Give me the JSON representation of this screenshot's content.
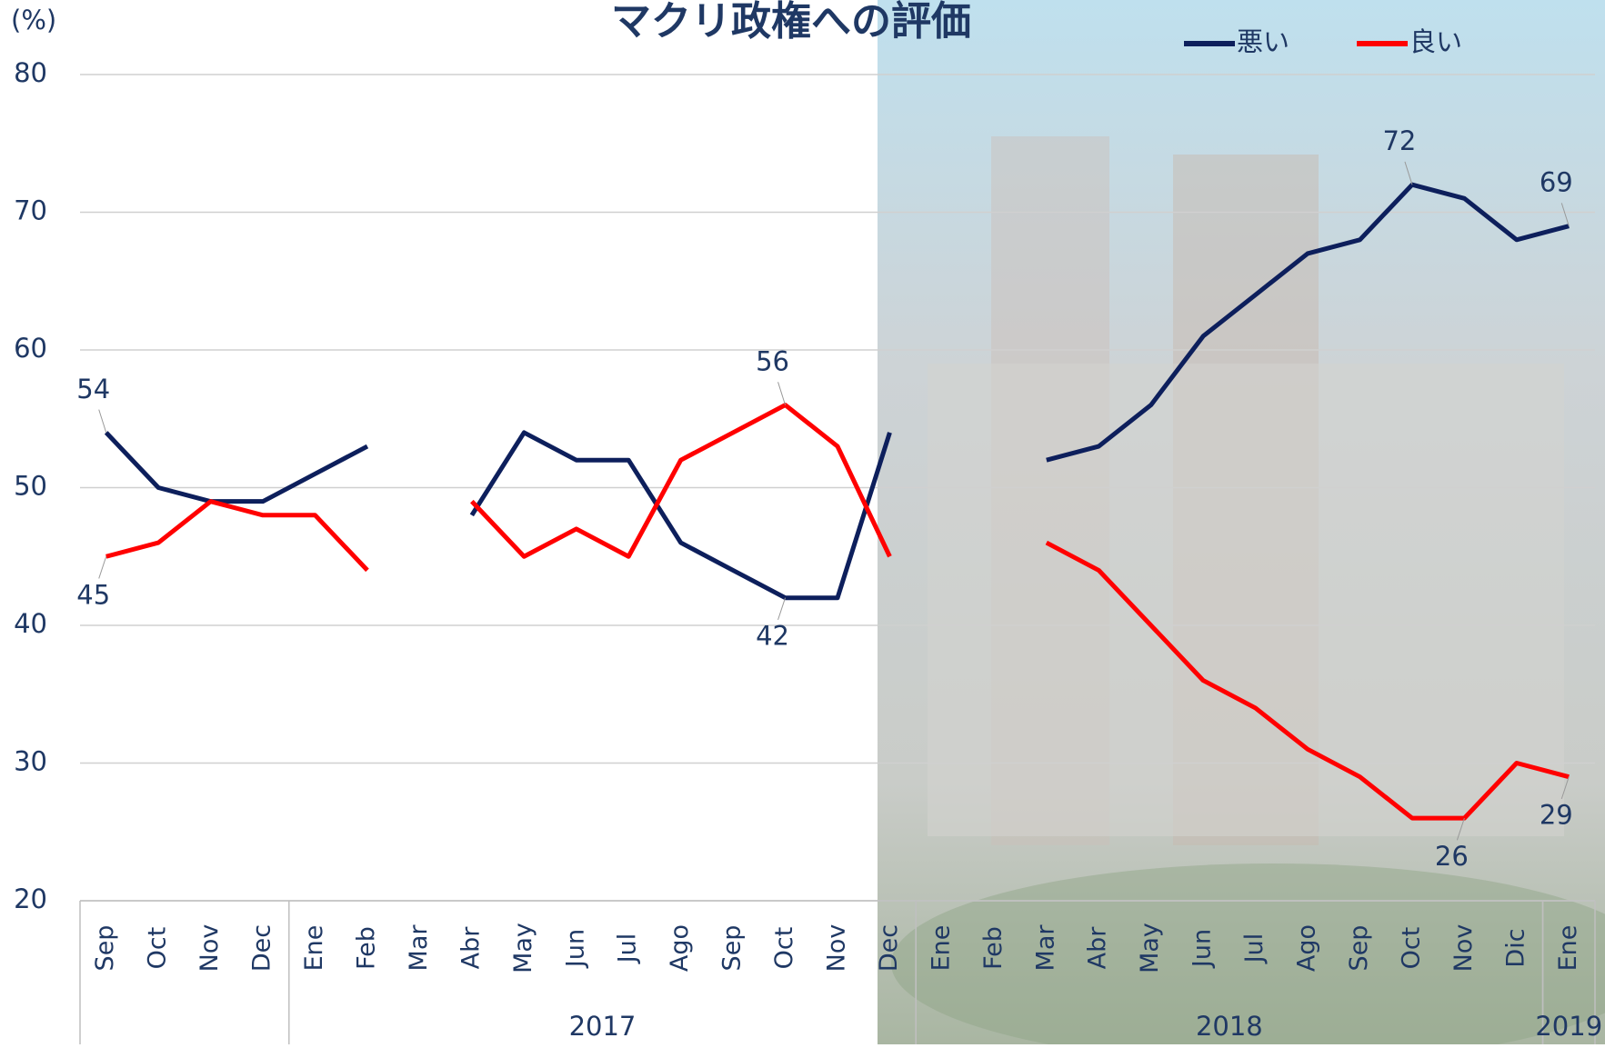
{
  "chart_data": {
    "type": "line",
    "title": "マクリ政権への評価",
    "y_unit": "(%)",
    "categories": [
      "Sep",
      "Oct",
      "Nov",
      "Dec",
      "Ene",
      "Feb",
      "Mar",
      "Abr",
      "May",
      "Jun",
      "Jul",
      "Ago",
      "Sep",
      "Oct",
      "Nov",
      "Dec",
      "Ene",
      "Feb",
      "Mar",
      "Abr",
      "May",
      "Jun",
      "Jul",
      "Ago",
      "Sep",
      "Oct",
      "Nov",
      "Dic",
      "Ene"
    ],
    "groups": [
      {
        "label": "2017",
        "start": 4,
        "end": 15
      },
      {
        "label": "2018",
        "start": 16,
        "end": 27
      },
      {
        "label": "2019",
        "start": 28,
        "end": 28
      }
    ],
    "series": [
      {
        "name": "悪い",
        "color": "#0d1f5c",
        "values": [
          54,
          50,
          49,
          49,
          51,
          53,
          null,
          48,
          54,
          52,
          52,
          46,
          44,
          42,
          42,
          54,
          null,
          null,
          52,
          53,
          56,
          61,
          64,
          67,
          68,
          72,
          71,
          68,
          69
        ],
        "data_labels": [
          0,
          13,
          25,
          28
        ]
      },
      {
        "name": "良い",
        "color": "#ff0000",
        "values": [
          45,
          46,
          49,
          48,
          48,
          44,
          null,
          49,
          45,
          47,
          45,
          52,
          54,
          56,
          53,
          45,
          null,
          null,
          46,
          44,
          40,
          36,
          34,
          31,
          29,
          26,
          26,
          30,
          29
        ],
        "data_labels": [
          0,
          13,
          26,
          28
        ]
      }
    ],
    "ylim": [
      20,
      80
    ],
    "yticks": [
      20,
      30,
      40,
      50,
      60,
      70,
      80
    ],
    "grid": true,
    "legend": "top-right"
  }
}
